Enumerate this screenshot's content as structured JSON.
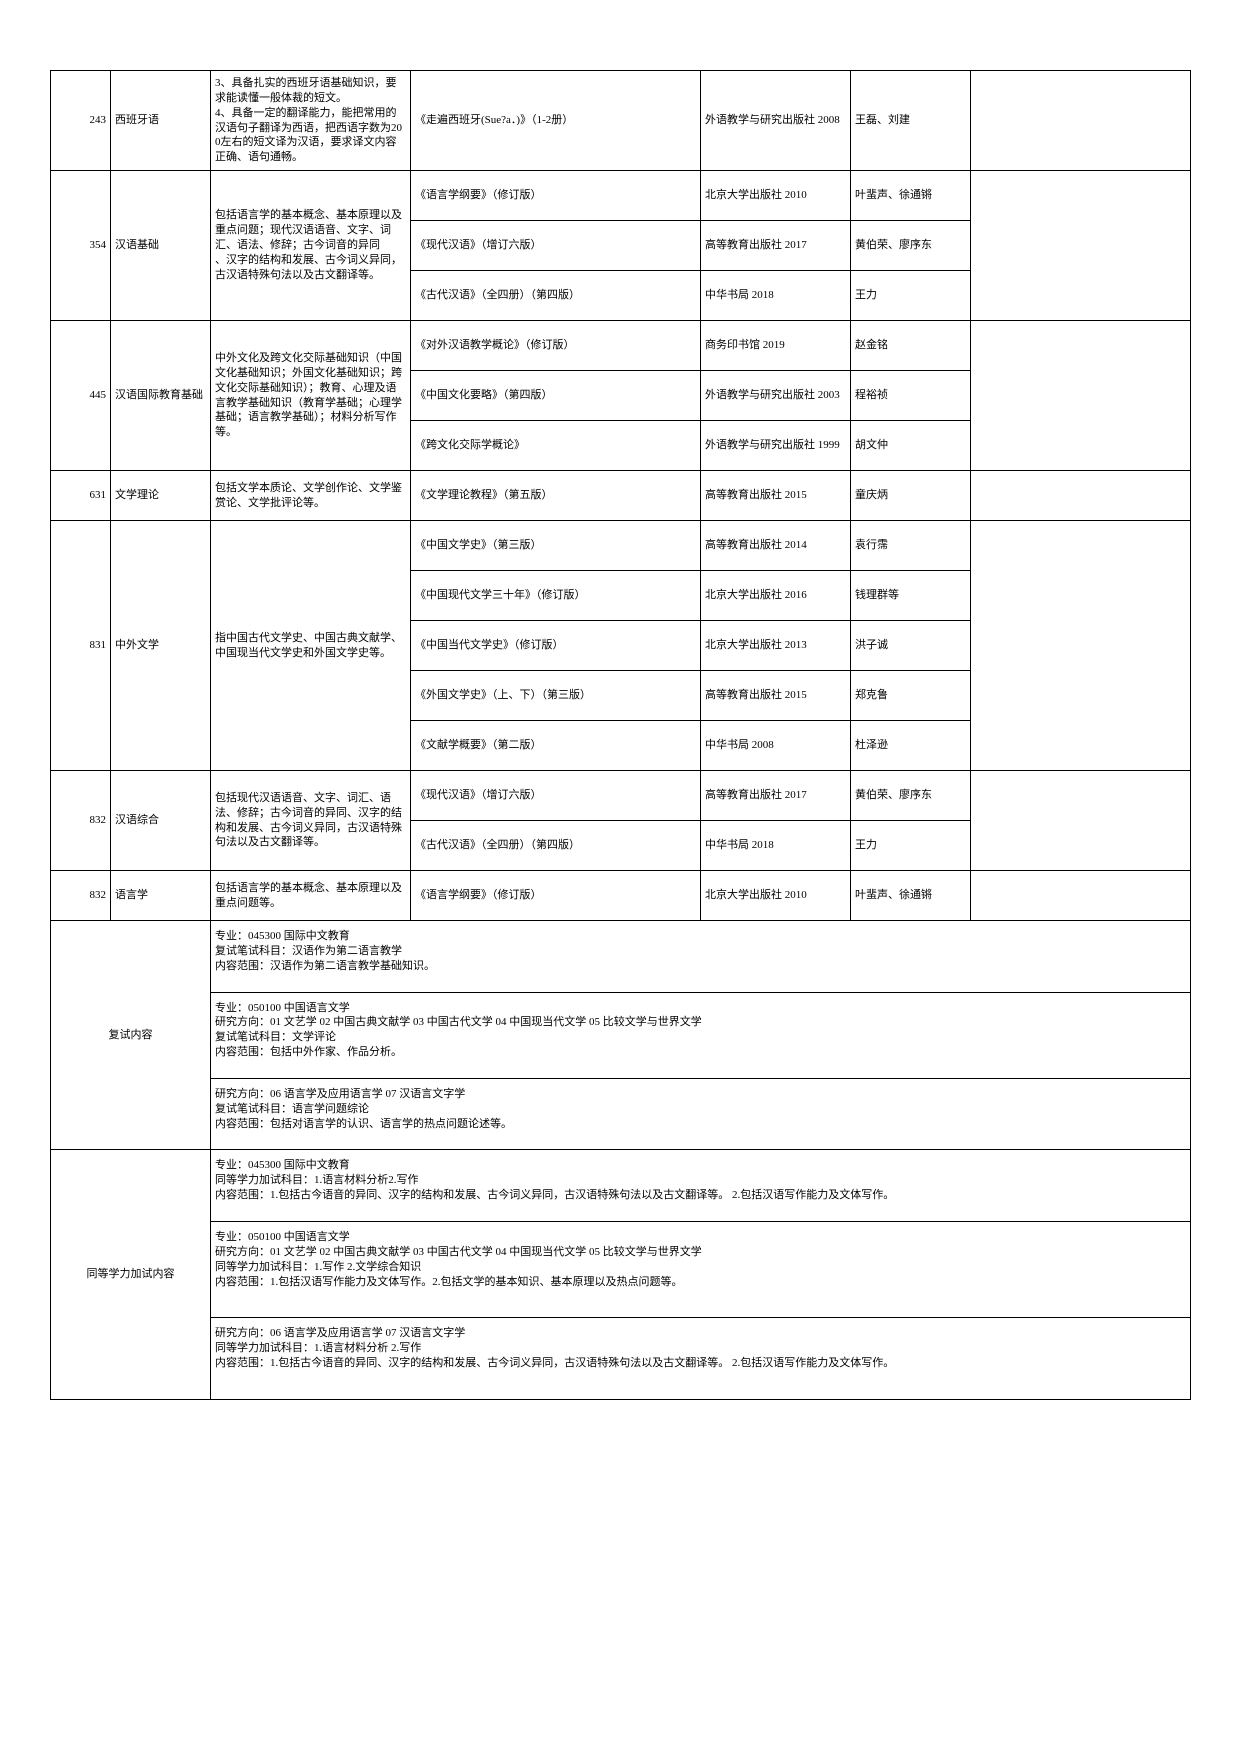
{
  "rows": [
    {
      "code": "243",
      "name": "西班牙语",
      "desc": "3、具备扎实的西班牙语基础知识，要求能读懂一般体裁的短文。\n4、具备一定的翻译能力，能把常用的汉语句子翻译为西语，把西语字数为200左右的短文译为汉语，要求译文内容正确、语句通畅。",
      "items": [
        {
          "book": "《走遍西班牙(Sue?a．)》（1-2册）",
          "pub": "外语教学与研究出版社 2008",
          "auth": "王磊、刘建"
        }
      ],
      "tall": true
    },
    {
      "code": "354",
      "name": "汉语基础",
      "desc": "包括语言学的基本概念、基本原理以及重点问题；现代汉语语音、文字、词汇、语法、修辞；古今词音的异同\n、汉字的结构和发展、古今词义异同，古汉语特殊句法以及古文翻译等。",
      "items": [
        {
          "book": "《语言学纲要》（修订版）",
          "pub": "北京大学出版社 2010",
          "auth": "叶蜚声、徐通锵"
        },
        {
          "book": "《现代汉语》（增订六版）",
          "pub": "高等教育出版社 2017",
          "auth": "黄伯荣、廖序东"
        },
        {
          "book": "《古代汉语》（全四册）（第四版）",
          "pub": "中华书局 2018",
          "auth": "王力"
        }
      ]
    },
    {
      "code": "445",
      "name": "汉语国际教育基础",
      "desc": "中外文化及跨文化交际基础知识（中国文化基础知识；外国文化基础知识；跨文化交际基础知识）；教育、心理及语言教学基础知识（教育学基础；心理学基础；语言教学基础）；材料分析写作等。",
      "items": [
        {
          "book": "《对外汉语教学概论》（修订版）",
          "pub": "商务印书馆 2019",
          "auth": "赵金铭"
        },
        {
          "book": "《中国文化要略》（第四版）",
          "pub": "外语教学与研究出版社 2003",
          "auth": "程裕祯"
        },
        {
          "book": "《跨文化交际学概论》",
          "pub": "外语教学与研究出版社 1999",
          "auth": "胡文仲"
        }
      ]
    },
    {
      "code": "631",
      "name": "文学理论",
      "desc": "包括文学本质论、文学创作论、文学鉴赏论、文学批评论等。",
      "items": [
        {
          "book": "《文学理论教程》（第五版）",
          "pub": "高等教育出版社 2015",
          "auth": "童庆炳"
        }
      ]
    },
    {
      "code": "831",
      "name": "中外文学",
      "desc": "指中国古代文学史、中国古典文献学、中国现当代文学史和外国文学史等。",
      "items": [
        {
          "book": "《中国文学史》（第三版）",
          "pub": "高等教育出版社 2014",
          "auth": "袁行霈"
        },
        {
          "book": "《中国现代文学三十年》（修订版）",
          "pub": "北京大学出版社 2016",
          "auth": "钱理群等"
        },
        {
          "book": "《中国当代文学史》（修订版）",
          "pub": "北京大学出版社 2013",
          "auth": "洪子诚"
        },
        {
          "book": "《外国文学史》（上、下）（第三版）",
          "pub": "高等教育出版社 2015",
          "auth": "郑克鲁"
        },
        {
          "book": "《文献学概要》（第二版）",
          "pub": "中华书局 2008",
          "auth": "杜泽逊"
        }
      ]
    },
    {
      "code": "832",
      "name": "汉语综合",
      "desc": "包括现代汉语语音、文字、词汇、语法、修辞；古今词音的异同、汉字的结构和发展、古今词义异同，古汉语特殊句法以及古文翻译等。",
      "items": [
        {
          "book": "《现代汉语》（增订六版）",
          "pub": "高等教育出版社 2017",
          "auth": "黄伯荣、廖序东"
        },
        {
          "book": "《古代汉语》（全四册）（第四版）",
          "pub": "中华书局 2018",
          "auth": "王力"
        }
      ]
    },
    {
      "code": "832",
      "name": "语言学",
      "desc": "包括语言学的基本概念、基本原理以及重点问题等。",
      "items": [
        {
          "book": "《语言学纲要》（修订版）",
          "pub": "北京大学出版社 2010",
          "auth": "叶蜚声、徐通锵"
        }
      ]
    }
  ],
  "extra": [
    {
      "label": "复试内容",
      "blocks": [
        "专业：045300 国际中文教育\n复试笔试科目：汉语作为第二语言教学\n内容范围：汉语作为第二语言教学基础知识。",
        "专业：050100 中国语言文学\n研究方向：01 文艺学  02 中国古典文献学  03 中国古代文学 04 中国现当代文学 05 比较文学与世界文学\n复试笔试科目：文学评论\n内容范围：包括中外作家、作品分析。",
        "研究方向：06 语言学及应用语言学  07 汉语言文字学\n复试笔试科目：语言学问题综论\n内容范围：包括对语言学的认识、语言学的热点问题论述等。"
      ]
    },
    {
      "label": "同等学力加试内容",
      "blocks": [
        "专业：045300 国际中文教育\n同等学力加试科目：1.语言材料分析2.写作\n内容范围：1.包括古今语音的异同、汉字的结构和发展、古今词义异同，古汉语特殊句法以及古文翻译等。 2.包括汉语写作能力及文体写作。",
        "专业：050100 中国语言文学\n研究方向：01 文艺学  02 中国古典文献学  03 中国古代文学 04 中国现当代文学 05 比较文学与世界文学\n同等学力加试科目：1.写作 2.文学综合知识\n内容范围：1.包括汉语写作能力及文体写作。2.包括文学的基本知识、基本原理以及热点问题等。",
        "研究方向：06 语言学及应用语言学  07 汉语言文字学\n同等学力加试科目：1.语言材料分析 2.写作\n内容范围：1.包括古今语音的异同、汉字的结构和发展、古今词义异同，古汉语特殊句法以及古文翻译等。 2.包括汉语写作能力及文体写作。"
      ]
    }
  ]
}
